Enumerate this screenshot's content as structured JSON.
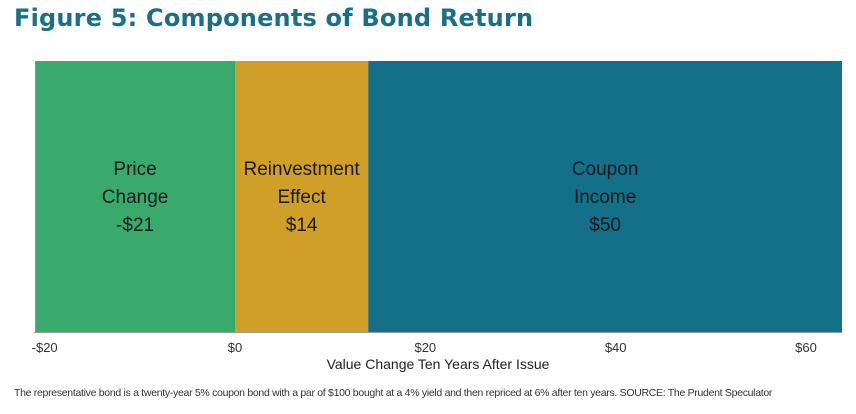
{
  "title": "Figure 5: Components of Bond Return",
  "footnote": "The representative bond is a twenty-year 5% coupon bond with a par of $100 bought at a 4% yield and then repriced at 6% after ten years. SOURCE: The Prudent Speculator",
  "chart_data": {
    "type": "bar",
    "orientation": "horizontal-waterfall",
    "xlabel": "Value Change Ten Years After Issue",
    "xlim": [
      -21,
      63
    ],
    "x_ticks": [
      -20,
      0,
      20,
      40,
      60
    ],
    "x_tick_labels": [
      "-$20",
      "$0",
      "$20",
      "$40",
      "$60"
    ],
    "grid": false,
    "legend": "none",
    "segments": [
      {
        "label_lines": [
          "Price",
          "Change",
          "-$21"
        ],
        "start": -21,
        "end": 0,
        "value": -21,
        "color": "#3aaa6c"
      },
      {
        "label_lines": [
          "Reinvestment",
          "Effect",
          "$14"
        ],
        "start": 0,
        "end": 14,
        "value": 14,
        "color": "#d09f27"
      },
      {
        "label_lines": [
          "Coupon",
          "Income",
          "$50"
        ],
        "start": 14,
        "end": 64,
        "value": 50,
        "color": "#146f88"
      }
    ]
  }
}
